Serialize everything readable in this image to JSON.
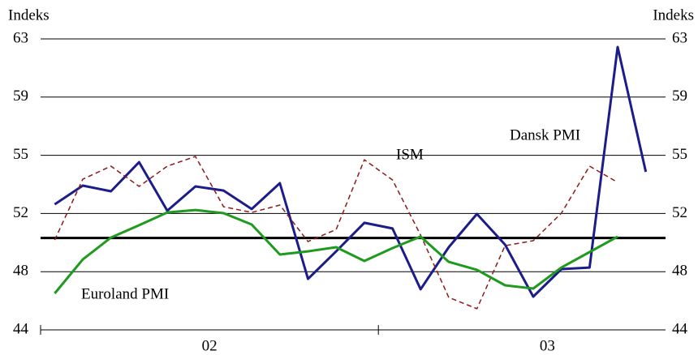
{
  "chart_data": {
    "type": "line",
    "y_label": "Indeks",
    "y2_label": "Indeks",
    "x": [
      2002.0417,
      2002.125,
      2002.2083,
      2002.2917,
      2002.375,
      2002.4583,
      2002.5417,
      2002.625,
      2002.7083,
      2002.7917,
      2002.875,
      2002.9583,
      2003.0417,
      2003.125,
      2003.2083,
      2003.2917,
      2003.375,
      2003.4583,
      2003.5417,
      2003.625,
      2003.7083,
      2003.7917
    ],
    "xlim": [
      2002,
      2003.85
    ],
    "xticks": [
      2002,
      2003
    ],
    "xlabels": [
      {
        "value": 2002.5,
        "label": "02"
      },
      {
        "value": 2003.5,
        "label": "03"
      }
    ],
    "ylim": [
      44,
      63
    ],
    "yticks": [
      44,
      {
        "value": 47.8,
        "label": "48"
      },
      {
        "value": 51.6,
        "label": "52"
      },
      {
        "value": 55.4,
        "label": "55"
      },
      {
        "value": 59.2,
        "label": "59"
      },
      63
    ],
    "y2lim": [
      44,
      63
    ],
    "y2ticks": [
      44,
      {
        "value": 47.8,
        "label": "48"
      },
      {
        "value": 51.6,
        "label": "52"
      },
      {
        "value": 55.4,
        "label": "55"
      },
      {
        "value": 59.2,
        "label": "59"
      },
      63
    ],
    "grid": true,
    "reference_line": 50,
    "series": [
      {
        "name": "Dansk PMI",
        "color": "#1c1c8a",
        "style": "solid",
        "values": [
          52.2,
          53.42,
          53.05,
          54.95,
          51.78,
          53.37,
          53.1,
          51.89,
          53.58,
          47.33,
          49.13,
          50.99,
          50.62,
          46.65,
          49.4,
          51.57,
          49.56,
          46.17,
          47.97,
          48.07,
          62.47,
          54.32
        ]
      },
      {
        "name": "ISM",
        "color": "#8b1a1a",
        "style": "dashed",
        "values": [
          49.87,
          53.84,
          54.69,
          53.37,
          54.69,
          55.32,
          52.04,
          51.67,
          52.15,
          49.77,
          50.56,
          55.11,
          53.79,
          50.19,
          46.12,
          45.38,
          49.5,
          49.82,
          51.62,
          54.69,
          53.63,
          null
        ]
      },
      {
        "name": "Euroland PMI",
        "color": "#1e9a1e",
        "style": "solid",
        "values": [
          46.38,
          48.6,
          50.03,
          50.83,
          51.67,
          51.83,
          51.62,
          50.88,
          48.92,
          49.13,
          49.4,
          48.5,
          49.34,
          50.09,
          48.44,
          47.92,
          46.91,
          46.7,
          48.07,
          49.08,
          50.09,
          null
        ]
      }
    ]
  }
}
